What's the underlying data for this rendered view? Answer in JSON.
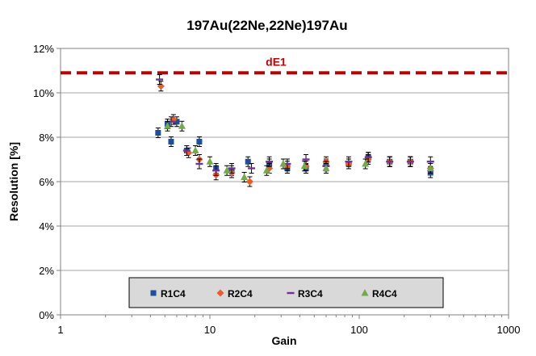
{
  "chart_data": {
    "type": "scatter",
    "title": "197Au(22Ne,22Ne)197Au",
    "xlabel": "Gain",
    "ylabel": "Resolution [%]",
    "x_scale": "log",
    "xlim": [
      1,
      1000
    ],
    "ylim": [
      0,
      12
    ],
    "x_ticks": [
      "1",
      "10",
      "100",
      "1000"
    ],
    "y_ticks": [
      "0%",
      "2%",
      "4%",
      "6%",
      "8%",
      "10%",
      "12%"
    ],
    "grid": "horizontal",
    "legend_position": "bottom-center",
    "reference_line": {
      "label": "dE1",
      "y": 10.9,
      "color": "#c00000"
    },
    "series": [
      {
        "name": "R1C4",
        "marker": "square",
        "color": "#1f4e9b",
        "points": [
          [
            4.5,
            8.2
          ],
          [
            5.2,
            8.6
          ],
          [
            5.5,
            7.8
          ],
          [
            6.0,
            8.7
          ],
          [
            7.0,
            7.4
          ],
          [
            8.5,
            7.8
          ],
          [
            11,
            6.6
          ],
          [
            14,
            6.5
          ],
          [
            18,
            6.9
          ],
          [
            25,
            6.8
          ],
          [
            33,
            6.6
          ],
          [
            44,
            6.6
          ],
          [
            60,
            6.8
          ],
          [
            85,
            6.8
          ],
          [
            115,
            7.1
          ],
          [
            160,
            6.9
          ],
          [
            220,
            6.9
          ],
          [
            300,
            6.4
          ]
        ]
      },
      {
        "name": "R2C4",
        "marker": "diamond",
        "color": "#f05a28",
        "points": [
          [
            4.7,
            10.3
          ],
          [
            5.7,
            8.8
          ],
          [
            7.2,
            7.3
          ],
          [
            8.5,
            7.0
          ],
          [
            11,
            6.3
          ],
          [
            14,
            6.4
          ],
          [
            18.5,
            6.0
          ],
          [
            25,
            6.6
          ],
          [
            33,
            6.7
          ],
          [
            44,
            6.7
          ],
          [
            60,
            6.9
          ],
          [
            85,
            6.8
          ],
          [
            115,
            7.0
          ],
          [
            160,
            6.9
          ],
          [
            220,
            6.9
          ],
          [
            300,
            6.6
          ]
        ]
      },
      {
        "name": "R3C4",
        "marker": "dash",
        "color": "#7030a0",
        "points": [
          [
            4.6,
            10.6
          ],
          [
            5.5,
            8.7
          ],
          [
            7.0,
            7.4
          ],
          [
            8.5,
            6.8
          ],
          [
            11,
            6.5
          ],
          [
            14,
            6.6
          ],
          [
            19,
            6.6
          ],
          [
            25,
            6.9
          ],
          [
            33,
            6.8
          ],
          [
            44,
            7.0
          ],
          [
            60,
            6.7
          ],
          [
            85,
            6.9
          ],
          [
            115,
            7.1
          ],
          [
            160,
            6.9
          ],
          [
            220,
            6.9
          ],
          [
            300,
            6.9
          ]
        ]
      },
      {
        "name": "R4C4",
        "marker": "triangle",
        "color": "#70ad47",
        "points": [
          [
            5.2,
            8.5
          ],
          [
            6.5,
            8.5
          ],
          [
            8.0,
            7.4
          ],
          [
            10,
            6.9
          ],
          [
            13,
            6.5
          ],
          [
            17,
            6.2
          ],
          [
            24,
            6.5
          ],
          [
            31,
            6.8
          ],
          [
            43,
            6.7
          ],
          [
            60,
            6.6
          ],
          [
            110,
            6.8
          ],
          [
            300,
            6.6
          ]
        ]
      }
    ]
  }
}
